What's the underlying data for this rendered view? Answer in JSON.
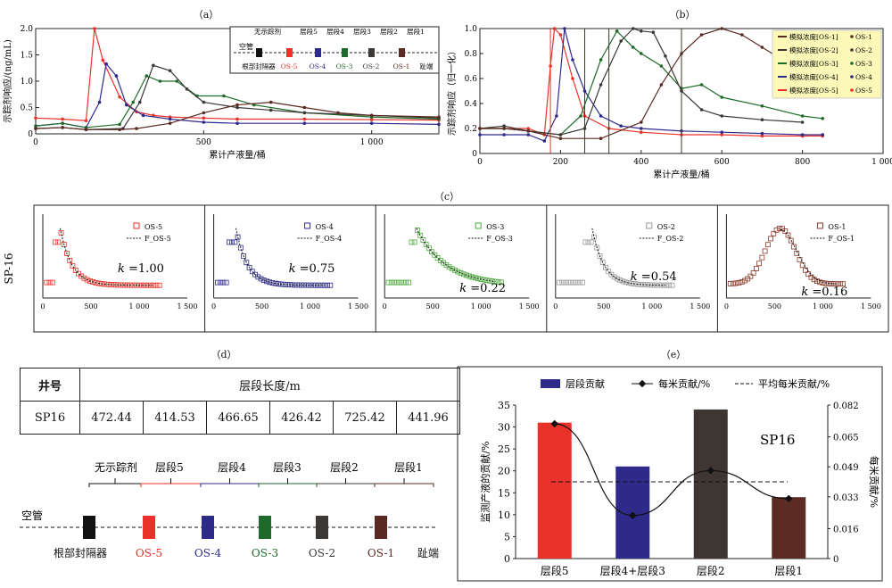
{
  "panel_labels": {
    "a": "（a）",
    "b": "（b）",
    "c": "（c）",
    "d": "（d）",
    "e": "（e）"
  },
  "colors": {
    "os5": "#e8322a",
    "os4": "#2e2a8a",
    "os3": "#1e6a2a",
    "os2": "#3c3835",
    "os1": "#5a2a22",
    "bar_os5": "#e8322a",
    "bar_os43": "#2e2a8a",
    "bar_os2": "#3e3632",
    "bar_os1": "#5a2c24"
  },
  "schematic": {
    "top_labels": [
      "无示踪剂",
      "层段5",
      "层段4",
      "层段3",
      "层段2",
      "层段1"
    ],
    "left_label": "空管",
    "bottom_labels": [
      "根部封隔器",
      "OS-5",
      "OS-4",
      "OS-3",
      "OS-2",
      "OS-1",
      "趾端"
    ]
  },
  "legend_b": [
    "模拟浓度[OS-1]",
    "模拟浓度[OS-2]",
    "模拟浓度[OS-3]",
    "模拟浓度[OS-4]",
    "模拟浓度[OS-5]"
  ],
  "legend_b_marks": [
    "OS-1",
    "OS-2",
    "OS-3",
    "OS-4",
    "OS-5"
  ],
  "side_label_c": "SP-16",
  "chart_data": [
    {
      "id": "a",
      "type": "line",
      "ylabel": "示踪剂响应/(ng/mL)",
      "xlabel": "累计产液量/桶",
      "xlim": [
        0,
        1200
      ],
      "ylim": [
        0,
        2.0
      ],
      "xticks": [
        "0",
        "500",
        "1 000"
      ],
      "yticks": [
        "0",
        "0.5",
        "1.0",
        "1.5",
        "2.0"
      ],
      "series": [
        {
          "name": "OS-5",
          "x": [
            0,
            80,
            150,
            175,
            200,
            250,
            300,
            350,
            400,
            500,
            600,
            800,
            1000,
            1200
          ],
          "y": [
            0.3,
            0.28,
            0.25,
            2.0,
            1.4,
            0.7,
            0.42,
            0.35,
            0.32,
            0.3,
            0.28,
            0.28,
            0.27,
            0.26
          ]
        },
        {
          "name": "OS-4",
          "x": [
            0,
            80,
            150,
            190,
            210,
            240,
            270,
            320,
            400,
            500,
            600,
            800,
            1000,
            1200
          ],
          "y": [
            0.15,
            0.2,
            0.12,
            0.6,
            1.33,
            1.1,
            0.55,
            0.35,
            0.28,
            0.22,
            0.2,
            0.2,
            0.2,
            0.18
          ]
        },
        {
          "name": "OS-3",
          "x": [
            0,
            80,
            150,
            250,
            290,
            330,
            370,
            420,
            480,
            560,
            650,
            800,
            1000,
            1200
          ],
          "y": [
            0.15,
            0.2,
            0.12,
            0.18,
            0.6,
            1.1,
            1.0,
            1.0,
            0.72,
            0.72,
            0.55,
            0.4,
            0.32,
            0.28
          ]
        },
        {
          "name": "OS-2",
          "x": [
            0,
            80,
            150,
            260,
            310,
            350,
            400,
            450,
            500,
            600,
            700,
            800,
            1000,
            1200
          ],
          "y": [
            0.1,
            0.12,
            0.08,
            0.1,
            0.6,
            1.3,
            1.2,
            0.85,
            0.6,
            0.5,
            0.45,
            0.4,
            0.35,
            0.3
          ]
        },
        {
          "name": "OS-1",
          "x": [
            0,
            80,
            150,
            250,
            300,
            400,
            500,
            600,
            700,
            800,
            900,
            1000,
            1200
          ],
          "y": [
            0.1,
            0.12,
            0.08,
            0.08,
            0.1,
            0.2,
            0.4,
            0.55,
            0.6,
            0.5,
            0.4,
            0.35,
            0.32
          ]
        }
      ]
    },
    {
      "id": "b",
      "type": "line",
      "ylabel": "示踪剂响应（归一化）",
      "xlabel": "累计产液量/桶",
      "xlim": [
        0,
        1000
      ],
      "ylim": [
        0,
        1.0
      ],
      "xticks": [
        "0",
        "200",
        "400",
        "600",
        "800",
        "1 000"
      ],
      "yticks": [
        "0",
        "0.2",
        "0.4",
        "0.6",
        "0.8",
        "1.0"
      ],
      "series": [
        {
          "name": "OS-5",
          "x": [
            0,
            60,
            120,
            160,
            175,
            185,
            200,
            230,
            260,
            320,
            400,
            500,
            600,
            700,
            800,
            850
          ],
          "y": [
            0.2,
            0.2,
            0.2,
            0.15,
            0.7,
            1.0,
            0.95,
            0.6,
            0.3,
            0.2,
            0.17,
            0.15,
            0.15,
            0.14,
            0.14,
            0.14
          ]
        },
        {
          "name": "OS-4",
          "x": [
            0,
            60,
            120,
            160,
            190,
            210,
            230,
            260,
            300,
            350,
            400,
            500,
            600,
            700,
            800,
            850
          ],
          "y": [
            0.15,
            0.15,
            0.15,
            0.1,
            0.3,
            1.0,
            0.75,
            0.5,
            0.3,
            0.22,
            0.2,
            0.18,
            0.17,
            0.16,
            0.15,
            0.15
          ]
        },
        {
          "name": "OS-3",
          "x": [
            0,
            60,
            120,
            200,
            250,
            300,
            340,
            380,
            400,
            450,
            500,
            550,
            600,
            700,
            800,
            850
          ],
          "y": [
            0.2,
            0.2,
            0.18,
            0.15,
            0.3,
            0.75,
            0.98,
            0.85,
            0.8,
            0.7,
            0.52,
            0.55,
            0.45,
            0.38,
            0.3,
            0.28
          ]
        },
        {
          "name": "OS-2",
          "x": [
            0,
            60,
            120,
            200,
            260,
            300,
            350,
            380,
            400,
            430,
            460,
            500,
            550,
            600,
            700,
            800
          ],
          "y": [
            0.2,
            0.22,
            0.18,
            0.15,
            0.2,
            0.55,
            0.9,
            1.0,
            0.98,
            0.97,
            0.78,
            0.5,
            0.35,
            0.3,
            0.27,
            0.25
          ]
        },
        {
          "name": "OS-1",
          "x": [
            0,
            60,
            120,
            200,
            300,
            400,
            450,
            500,
            550,
            600,
            650,
            700,
            750,
            800
          ],
          "y": [
            0.2,
            0.2,
            0.18,
            0.12,
            0.12,
            0.25,
            0.55,
            0.8,
            0.95,
            1.0,
            0.95,
            0.85,
            0.75,
            0.7
          ]
        }
      ]
    },
    {
      "id": "c",
      "type": "scatter",
      "xticks": [
        "0",
        "500",
        "1 000",
        "1 500"
      ],
      "panels": [
        {
          "name": "OS-5",
          "fit": "F_OS-5",
          "k_label": "k",
          "k_value": "=1.00",
          "color": "#e8322a"
        },
        {
          "name": "OS-4",
          "fit": "F_OS-4",
          "k_label": "k",
          "k_value": "=0.75",
          "color": "#2e2a8a"
        },
        {
          "name": "OS-3",
          "fit": "F_OS-3",
          "k_label": "k",
          "k_value": "=0.22",
          "color": "#4caa3c"
        },
        {
          "name": "OS-2",
          "fit": "F_OS-2",
          "k_label": "k",
          "k_value": "=0.54",
          "color": "#9a9a9a"
        },
        {
          "name": "OS-1",
          "fit": "F_OS-1",
          "k_label": "k",
          "k_value": "=0.16",
          "color": "#8a3a2a"
        }
      ]
    },
    {
      "id": "d",
      "type": "table",
      "headers": [
        "井号",
        "层段长度/m"
      ],
      "rows": [
        {
          "well": "SP16",
          "values": [
            "472.44",
            "414.53",
            "466.65",
            "426.42",
            "725.42",
            "441.96"
          ]
        }
      ]
    },
    {
      "id": "e",
      "type": "bar",
      "legend": [
        "层段贡献",
        "每米贡献/%",
        "平均每米贡献/%"
      ],
      "categories": [
        "层段5",
        "层段4+层段3",
        "层段2",
        "层段1"
      ],
      "values": [
        31,
        21,
        34,
        14
      ],
      "line_values": [
        0.072,
        0.023,
        0.047,
        0.032
      ],
      "average": 0.041,
      "ylabel": "监测产液的贡献/%",
      "y2label": "每米贡献/%",
      "ylim": [
        0,
        35
      ],
      "y2lim": [
        0,
        0.082
      ],
      "yticks": [
        "0",
        "5",
        "10",
        "15",
        "20",
        "25",
        "30",
        "35"
      ],
      "y2ticks": [
        "0",
        "0.016",
        "0.033",
        "0.049",
        "0.065",
        "0.082"
      ],
      "annotation": "SP16"
    }
  ]
}
